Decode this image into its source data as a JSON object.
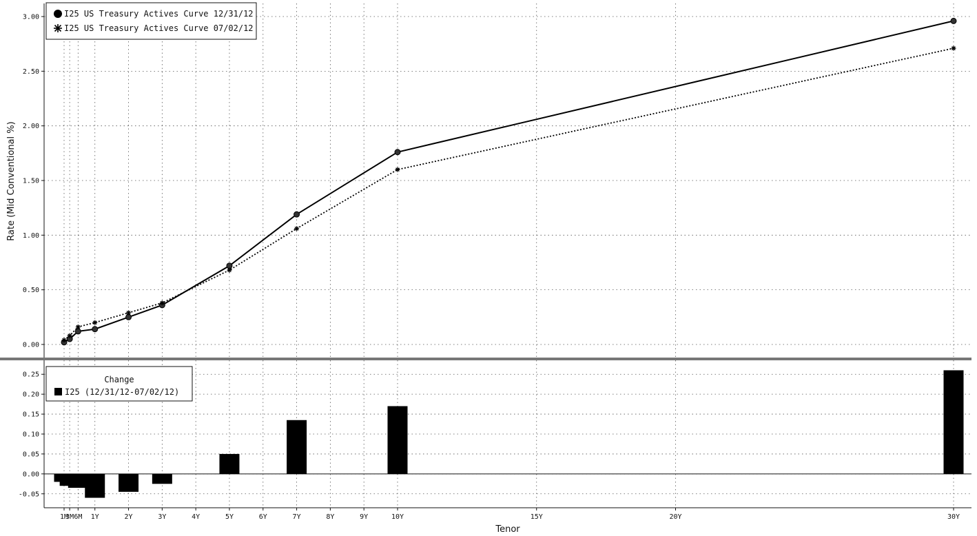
{
  "chart_data": [
    {
      "type": "line",
      "ylabel": "Rate (Mid Conventional %)",
      "ylim": [
        -0.12,
        3.12
      ],
      "y_ticks": [
        "0.00",
        "0.50",
        "1.00",
        "1.50",
        "2.00",
        "2.50",
        "3.00"
      ],
      "grid": true,
      "legend_position": "top-left",
      "x_units": "years",
      "x": [
        0.0833,
        0.25,
        0.5,
        1,
        2,
        3,
        5,
        7,
        10,
        30
      ],
      "series": [
        {
          "name": "I25 US Treasury Actives Curve 12/31/12",
          "marker": "circle",
          "line": "solid",
          "values": [
            0.02,
            0.05,
            0.12,
            0.14,
            0.25,
            0.36,
            0.72,
            1.19,
            1.76,
            2.96
          ]
        },
        {
          "name": "I25 US Treasury Actives Curve 07/02/12",
          "marker": "asterisk",
          "line": "dotted",
          "values": [
            0.04,
            0.08,
            0.16,
            0.2,
            0.29,
            0.38,
            0.68,
            1.06,
            1.6,
            2.71
          ]
        }
      ]
    },
    {
      "type": "bar",
      "ylim": [
        -0.085,
        0.285
      ],
      "y_ticks": [
        "-0.05",
        "0.00",
        "0.05",
        "0.10",
        "0.15",
        "0.20",
        "0.25"
      ],
      "grid": true,
      "legend_position": "top-left",
      "legend_title": "Change",
      "x": [
        0.0833,
        0.25,
        0.5,
        1,
        2,
        3,
        5,
        7,
        10,
        30
      ],
      "series": [
        {
          "name": "I25 (12/31/12-07/02/12)",
          "values": [
            -0.02,
            -0.03,
            -0.035,
            -0.06,
            -0.045,
            -0.025,
            0.05,
            0.135,
            0.17,
            0.26
          ]
        }
      ],
      "xlabel": "Tenor",
      "x_tick_labels": [
        "1M",
        "3M",
        "6M",
        "1Y",
        "2Y",
        "3Y",
        "4Y",
        "5Y",
        "6Y",
        "7Y",
        "8Y",
        "9Y",
        "10Y",
        "15Y",
        "20Y",
        "30Y"
      ],
      "x_tick_values": [
        0.0833,
        0.25,
        0.5,
        1,
        2,
        3,
        4,
        5,
        6,
        7,
        8,
        9,
        10,
        15,
        20,
        30
      ]
    }
  ]
}
